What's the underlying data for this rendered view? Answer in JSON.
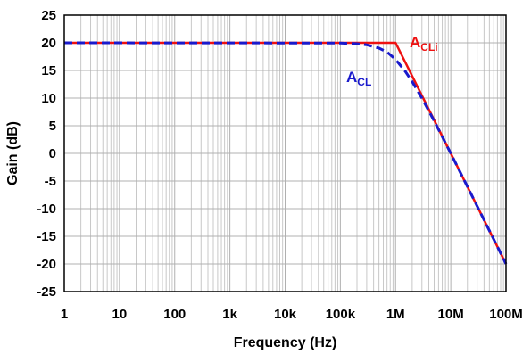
{
  "chart_data": {
    "type": "line",
    "title": "",
    "xlabel": "Frequency (Hz)",
    "ylabel": "Gain (dB)",
    "xscale": "log",
    "xlim": [
      1,
      100000000
    ],
    "ylim": [
      -25,
      25
    ],
    "grid": true,
    "x_ticks": [
      {
        "value": 1,
        "label": "1"
      },
      {
        "value": 10,
        "label": "10"
      },
      {
        "value": 100,
        "label": "100"
      },
      {
        "value": 1000,
        "label": "1k"
      },
      {
        "value": 10000,
        "label": "10k"
      },
      {
        "value": 100000,
        "label": "100k"
      },
      {
        "value": 1000000,
        "label": "1M"
      },
      {
        "value": 10000000,
        "label": "10M"
      },
      {
        "value": 100000000,
        "label": "100M"
      }
    ],
    "y_ticks": [
      {
        "value": 25,
        "label": "25"
      },
      {
        "value": 20,
        "label": "20"
      },
      {
        "value": 15,
        "label": "15"
      },
      {
        "value": 10,
        "label": "10"
      },
      {
        "value": 5,
        "label": "5"
      },
      {
        "value": 0,
        "label": "0"
      },
      {
        "value": -5,
        "label": "-5"
      },
      {
        "value": -10,
        "label": "-10"
      },
      {
        "value": -15,
        "label": "-15"
      },
      {
        "value": -20,
        "label": "-20"
      },
      {
        "value": -25,
        "label": "-25"
      }
    ],
    "series": [
      {
        "color": "#ee1111",
        "style": "solid",
        "x": [
          1,
          1000000,
          100000000
        ],
        "y": [
          20,
          20,
          -20
        ]
      },
      {
        "color": "#1a1acc",
        "style": "dashed",
        "x": [
          1,
          100000,
          200000,
          300000,
          500000,
          700000,
          1000000,
          1500000,
          2000000,
          3000000,
          5000000,
          10000000,
          30000000,
          100000000
        ],
        "y": [
          20,
          19.96,
          19.83,
          19.63,
          19.03,
          18.33,
          16.99,
          14.83,
          12.97,
          10.0,
          5.86,
          0.0,
          -9.54,
          -20.0
        ]
      }
    ],
    "annotations": [
      {
        "main": "A",
        "sub": "CLi",
        "color": "#ee1111"
      },
      {
        "main": "A",
        "sub": "CL",
        "color": "#1a1acc"
      }
    ]
  }
}
